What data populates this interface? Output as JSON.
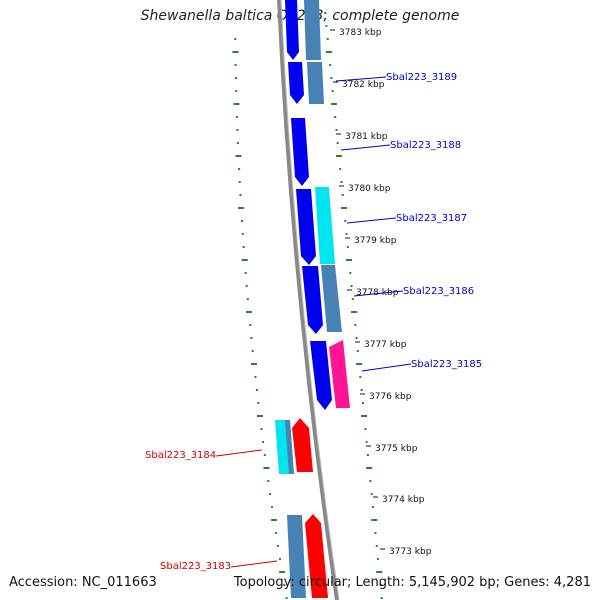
{
  "title": "Shewanella baltica OS223, complete genome",
  "footer": {
    "accession": "Accession: NC_011663",
    "topology": "Topology: circular; Length: 5,145,902 bp; Genes: 4,281"
  },
  "colors": {
    "forward_gene": "#0000ee",
    "reverse_gene": "#ff0000",
    "steelblue_gene": "#4682b4",
    "cyan_gene": "#00e5ee",
    "magenta_gene": "#ff1493",
    "label_forward": "#0000cc",
    "label_reverse": "#cc0000",
    "dots": "#228b22",
    "backbone": "#888888"
  },
  "ticks": [
    {
      "label": "3783 kbp"
    },
    {
      "label": "3782 kbp"
    },
    {
      "label": "3781 kbp"
    },
    {
      "label": "3780 kbp"
    },
    {
      "label": "3779 kbp"
    },
    {
      "label": "3778 kbp"
    },
    {
      "label": "3777 kbp"
    },
    {
      "label": "3776 kbp"
    },
    {
      "label": "3775 kbp"
    },
    {
      "label": "3774 kbp"
    },
    {
      "label": "3773 kbp"
    }
  ],
  "gene_labels": [
    {
      "label": "Sbal223_3189",
      "strand": "forward"
    },
    {
      "label": "Sbal223_3188",
      "strand": "forward"
    },
    {
      "label": "Sbal223_3187",
      "strand": "forward"
    },
    {
      "label": "Sbal223_3186",
      "strand": "forward"
    },
    {
      "label": "Sbal223_3185",
      "strand": "forward"
    },
    {
      "label": "Sbal223_3184",
      "strand": "reverse"
    },
    {
      "label": "Sbal223_3183",
      "strand": "reverse"
    }
  ]
}
